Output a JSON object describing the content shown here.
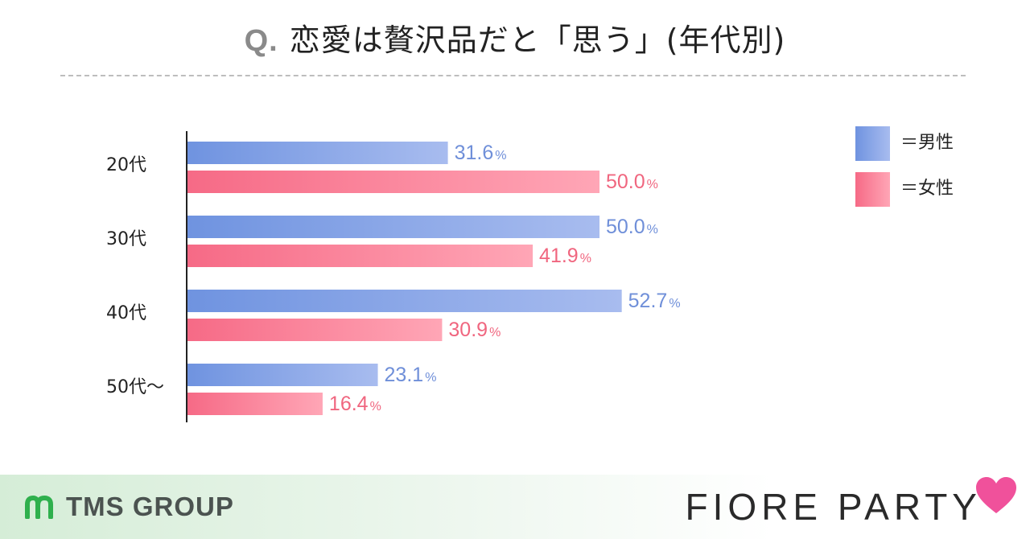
{
  "title": {
    "q": "Q.",
    "text": "恋愛は贅沢品だと「思う」(年代別)"
  },
  "legend": [
    {
      "label": "＝男性",
      "color_key": "male"
    },
    {
      "label": "＝女性",
      "color_key": "female"
    }
  ],
  "colors": {
    "male_start": "#6f93e0",
    "male_end": "#a8bcef",
    "male_text": "#6f8fd9",
    "female_start": "#f66a86",
    "female_end": "#ffa6b6",
    "female_text": "#f0667f",
    "axis": "#222222"
  },
  "chart_data": {
    "type": "bar",
    "orientation": "horizontal",
    "title": "恋愛は贅沢品だと「思う」(年代別)",
    "categories": [
      "20代",
      "30代",
      "40代",
      "50代〜"
    ],
    "series": [
      {
        "name": "男性",
        "values": [
          31.6,
          50.0,
          52.7,
          23.1
        ],
        "labels": [
          "31.6",
          "50.0",
          "52.7",
          "23.1"
        ]
      },
      {
        "name": "女性",
        "values": [
          50.0,
          41.9,
          30.9,
          16.4
        ],
        "labels": [
          "50.0",
          "41.9",
          "30.9",
          "16.4"
        ]
      }
    ],
    "unit": "%",
    "xlim": [
      0,
      100
    ],
    "grid": false,
    "legend_position": "top-right"
  },
  "footer": {
    "left_logo_text": "TMS GROUP",
    "right_logo_text": "FIORE PARTY"
  }
}
